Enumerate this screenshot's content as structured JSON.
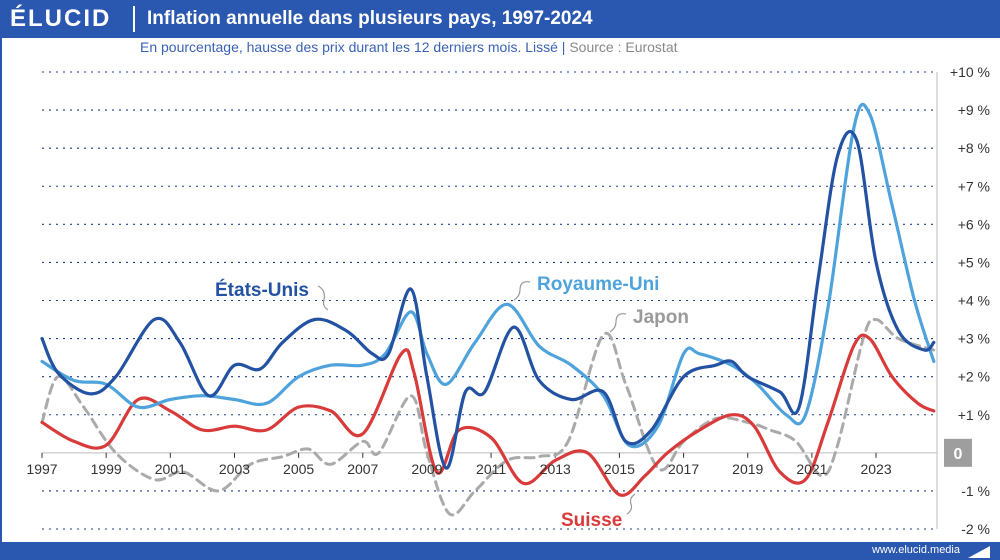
{
  "header": {
    "logo": "ÉLUCID",
    "title": "Inflation annuelle dans plusieurs pays, 1997-2024"
  },
  "subtitle": {
    "main": "En pourcentage, hausse des prix durant les 12 derniers mois. Lissé",
    "separator": "|",
    "source": "Source : Eurostat"
  },
  "footer": {
    "url": "www.elucid.media"
  },
  "colors": {
    "brand": "#2a57b0",
    "us": "#2452a3",
    "uk": "#4fa3dc",
    "ch": "#d93a3a",
    "jp": "#aaaaaa",
    "zero_badge": "#9e9e9e"
  },
  "chart_data": {
    "type": "line",
    "title": "Inflation annuelle dans plusieurs pays, 1997-2024",
    "ylabel": "En pourcentage",
    "xlim": [
      1997,
      2024.9
    ],
    "ylim": [
      -2,
      10
    ],
    "xticks": [
      1997,
      1999,
      2001,
      2003,
      2005,
      2007,
      2009,
      2011,
      2013,
      2015,
      2017,
      2019,
      2021,
      2023
    ],
    "xtick_labels": [
      "1997",
      "1999",
      "2001",
      "2003",
      "2005",
      "2007",
      "2009",
      "2011",
      "2013",
      "2015",
      "2017",
      "2019",
      "2021",
      "2023"
    ],
    "yticks": [
      -2,
      -1,
      0,
      1,
      2,
      3,
      4,
      5,
      6,
      7,
      8,
      9,
      10
    ],
    "ytick_labels": [
      "-2 %",
      "-1 %",
      "0",
      "+1 %",
      "+2 %",
      "+3 %",
      "+4 %",
      "+5 %",
      "+6 %",
      "+7 %",
      "+8 %",
      "+9 %",
      "+10 %"
    ],
    "series": [
      {
        "key": "us",
        "name": "États-Unis",
        "points": [
          [
            1997,
            3.0
          ],
          [
            1997.5,
            2.1
          ],
          [
            1998.5,
            1.55
          ],
          [
            1999.3,
            2.0
          ],
          [
            2000.5,
            3.5
          ],
          [
            2001.3,
            2.9
          ],
          [
            2002.2,
            1.5
          ],
          [
            2003,
            2.3
          ],
          [
            2003.8,
            2.2
          ],
          [
            2004.5,
            2.9
          ],
          [
            2005.5,
            3.5
          ],
          [
            2006.5,
            3.2
          ],
          [
            2007.3,
            2.6
          ],
          [
            2007.8,
            2.6
          ],
          [
            2008.5,
            4.3
          ],
          [
            2009.0,
            2.0
          ],
          [
            2009.6,
            -0.4
          ],
          [
            2010.2,
            1.6
          ],
          [
            2010.8,
            1.6
          ],
          [
            2011.7,
            3.3
          ],
          [
            2012.5,
            1.9
          ],
          [
            2013.5,
            1.4
          ],
          [
            2014.5,
            1.6
          ],
          [
            2015.2,
            0.3
          ],
          [
            2016,
            0.6
          ],
          [
            2017,
            2.0
          ],
          [
            2018,
            2.3
          ],
          [
            2018.5,
            2.4
          ],
          [
            2019,
            2.0
          ],
          [
            2020,
            1.6
          ],
          [
            2020.6,
            1.2
          ],
          [
            2021.2,
            4.6
          ],
          [
            2021.8,
            7.8
          ],
          [
            2022.4,
            8.2
          ],
          [
            2023.0,
            5.0
          ],
          [
            2023.7,
            3.2
          ],
          [
            2024.5,
            2.7
          ],
          [
            2024.8,
            2.9
          ]
        ]
      },
      {
        "key": "uk",
        "name": "Royaume-Uni",
        "points": [
          [
            1997,
            2.4
          ],
          [
            1998,
            1.9
          ],
          [
            1999,
            1.8
          ],
          [
            2000,
            1.2
          ],
          [
            2001,
            1.4
          ],
          [
            2002,
            1.5
          ],
          [
            2003,
            1.4
          ],
          [
            2004,
            1.3
          ],
          [
            2005,
            2.0
          ],
          [
            2006,
            2.3
          ],
          [
            2007,
            2.3
          ],
          [
            2007.7,
            2.6
          ],
          [
            2008.5,
            3.7
          ],
          [
            2009.0,
            2.6
          ],
          [
            2009.6,
            1.8
          ],
          [
            2010.5,
            2.9
          ],
          [
            2011.5,
            3.9
          ],
          [
            2012.5,
            2.8
          ],
          [
            2013.5,
            2.3
          ],
          [
            2014.5,
            1.5
          ],
          [
            2015.3,
            0.2
          ],
          [
            2016.2,
            0.7
          ],
          [
            2017,
            2.6
          ],
          [
            2017.5,
            2.6
          ],
          [
            2018.5,
            2.3
          ],
          [
            2019.3,
            1.8
          ],
          [
            2020.2,
            1.0
          ],
          [
            2020.8,
            1.0
          ],
          [
            2021.5,
            3.8
          ],
          [
            2022.3,
            8.5
          ],
          [
            2022.8,
            8.9
          ],
          [
            2023.5,
            6.5
          ],
          [
            2024.2,
            4.0
          ],
          [
            2024.8,
            2.4
          ]
        ]
      },
      {
        "key": "ch",
        "name": "Suisse",
        "points": [
          [
            1997,
            0.8
          ],
          [
            1998,
            0.3
          ],
          [
            1999,
            0.2
          ],
          [
            2000,
            1.4
          ],
          [
            2001,
            1.1
          ],
          [
            2002,
            0.6
          ],
          [
            2003,
            0.7
          ],
          [
            2004,
            0.6
          ],
          [
            2005,
            1.2
          ],
          [
            2006,
            1.1
          ],
          [
            2007,
            0.5
          ],
          [
            2008.2,
            2.6
          ],
          [
            2008.6,
            2.1
          ],
          [
            2009.3,
            -0.5
          ],
          [
            2010,
            0.6
          ],
          [
            2011,
            0.4
          ],
          [
            2012,
            -0.8
          ],
          [
            2013,
            -0.2
          ],
          [
            2014,
            0.0
          ],
          [
            2015,
            -1.1
          ],
          [
            2015.8,
            -0.6
          ],
          [
            2016.5,
            0.0
          ],
          [
            2017.5,
            0.6
          ],
          [
            2018.5,
            1.0
          ],
          [
            2019.2,
            0.7
          ],
          [
            2020.0,
            -0.5
          ],
          [
            2020.8,
            -0.7
          ],
          [
            2021.5,
            0.8
          ],
          [
            2022.3,
            2.8
          ],
          [
            2022.8,
            3.0
          ],
          [
            2023.5,
            2.0
          ],
          [
            2024.3,
            1.3
          ],
          [
            2024.8,
            1.1
          ]
        ]
      },
      {
        "key": "jp",
        "name": "Japon",
        "points": [
          [
            1997,
            0.8
          ],
          [
            1997.5,
            2.0
          ],
          [
            1998.3,
            1.2
          ],
          [
            1999.3,
            0.0
          ],
          [
            2000.5,
            -0.7
          ],
          [
            2001.4,
            -0.5
          ],
          [
            2002.5,
            -1.0
          ],
          [
            2003.5,
            -0.3
          ],
          [
            2004.5,
            -0.1
          ],
          [
            2005.3,
            0.1
          ],
          [
            2006.0,
            -0.3
          ],
          [
            2007.0,
            0.3
          ],
          [
            2007.5,
            0.0
          ],
          [
            2008.5,
            1.5
          ],
          [
            2009.0,
            0.0
          ],
          [
            2009.7,
            -1.6
          ],
          [
            2010.5,
            -1.0
          ],
          [
            2011.5,
            -0.2
          ],
          [
            2012.5,
            -0.1
          ],
          [
            2013.4,
            0.3
          ],
          [
            2014.5,
            3.1
          ],
          [
            2015.2,
            1.8
          ],
          [
            2016.2,
            -0.4
          ],
          [
            2017.0,
            0.3
          ],
          [
            2018.0,
            0.9
          ],
          [
            2019.0,
            0.8
          ],
          [
            2019.7,
            0.6
          ],
          [
            2020.5,
            0.3
          ],
          [
            2021.3,
            -0.6
          ],
          [
            2021.8,
            0.2
          ],
          [
            2022.6,
            3.0
          ],
          [
            2023.0,
            3.5
          ],
          [
            2023.7,
            3.0
          ],
          [
            2024.8,
            2.7
          ]
        ]
      }
    ],
    "labels": [
      {
        "key": "us",
        "text": "États-Unis"
      },
      {
        "key": "uk",
        "text": "Royaume-Uni"
      },
      {
        "key": "jp",
        "text": "Japon"
      },
      {
        "key": "ch",
        "text": "Suisse"
      }
    ]
  }
}
